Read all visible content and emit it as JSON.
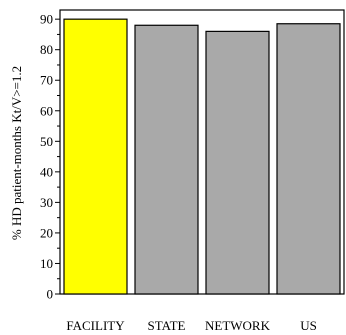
{
  "chart_data": {
    "type": "bar",
    "title": "",
    "xlabel": "",
    "ylabel": "% HD patient-months Kt/V>=1.2",
    "categories": [
      "FACILITY",
      "STATE",
      "NETWORK",
      "US"
    ],
    "values": [
      90,
      88,
      86,
      88.5
    ],
    "bar_colors": [
      "#ffff00",
      "#a9a9a9",
      "#a9a9a9",
      "#a9a9a9"
    ],
    "bar_edge_color": "#000000",
    "ylim": [
      0,
      93
    ],
    "yticks": [
      0,
      10,
      20,
      30,
      40,
      50,
      60,
      70,
      80,
      90
    ],
    "ytick_labels": [
      "0",
      "10",
      "20",
      "30",
      "40",
      "50",
      "60",
      "70",
      "80",
      "90"
    ],
    "grid": false,
    "legend": "none"
  }
}
